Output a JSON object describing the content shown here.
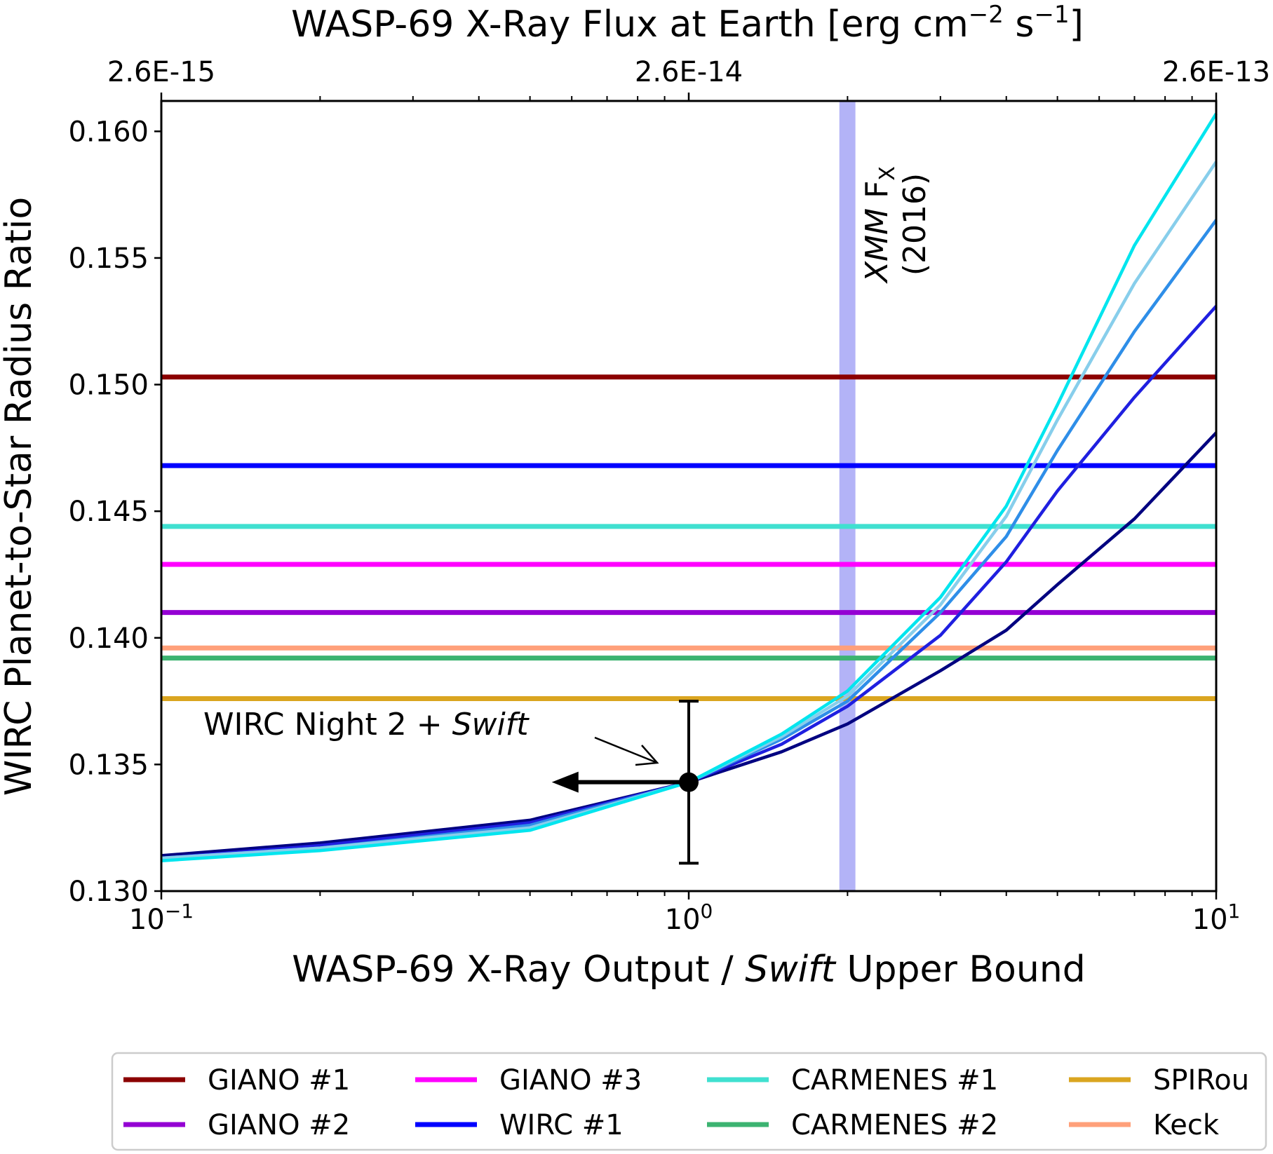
{
  "chart_data": {
    "type": "line",
    "top_title": "WASP-69 X-Ray Flux at Earth [erg cm",
    "top_title_sup1": "−2",
    "top_title_mid": " s",
    "top_title_sup2": "−1",
    "top_title_end": "]",
    "top_ticks": [
      {
        "label": "2.6E-15",
        "x": 0.1
      },
      {
        "label": "2.6E-14",
        "x": 1
      },
      {
        "label": "2.6E-13",
        "x": 10
      }
    ],
    "xlabel_pre": "WASP-69 X-Ray Output / ",
    "xlabel_em": "Swift",
    "xlabel_post": " Upper Bound",
    "ylabel": "WIRC Planet-to-Star Radius Ratio",
    "x_scale": "log",
    "xlim": [
      0.1,
      10
    ],
    "ylim": [
      0.13,
      0.1612
    ],
    "x_ticks": [
      {
        "base": "10",
        "exp": "−1",
        "value": 0.1
      },
      {
        "base": "10",
        "exp": "0",
        "value": 1
      },
      {
        "base": "10",
        "exp": "1",
        "value": 10
      }
    ],
    "y_ticks": [
      {
        "label": "0.130",
        "value": 0.13
      },
      {
        "label": "0.135",
        "value": 0.135
      },
      {
        "label": "0.140",
        "value": 0.14
      },
      {
        "label": "0.145",
        "value": 0.145
      },
      {
        "label": "0.150",
        "value": 0.15
      },
      {
        "label": "0.155",
        "value": 0.155
      },
      {
        "label": "0.160",
        "value": 0.16
      }
    ],
    "reference_lines": [
      {
        "name": "GIANO #1",
        "value": 0.1503,
        "color": "#8b0000"
      },
      {
        "name": "GIANO #2",
        "value": 0.141,
        "color": "#9400d3"
      },
      {
        "name": "GIANO #3",
        "value": 0.1429,
        "color": "#ff00ff"
      },
      {
        "name": "WIRC #1",
        "value": 0.1468,
        "color": "#0000ff"
      },
      {
        "name": "CARMENES #1",
        "value": 0.1444,
        "color": "#40e0d0"
      },
      {
        "name": "CARMENES #2",
        "value": 0.1392,
        "color": "#3cb371"
      },
      {
        "name": "SPIRou",
        "value": 0.1376,
        "color": "#daa520"
      },
      {
        "name": "Keck",
        "value": 0.1396,
        "color": "#ffa07a"
      }
    ],
    "model_series": [
      {
        "color": "#000080",
        "points": [
          [
            0.1,
            0.1314
          ],
          [
            0.2,
            0.1319
          ],
          [
            0.5,
            0.1328
          ],
          [
            1,
            0.1343
          ],
          [
            1.5,
            0.1355
          ],
          [
            2,
            0.1366
          ],
          [
            3,
            0.1387
          ],
          [
            4,
            0.1403
          ],
          [
            5,
            0.1421
          ],
          [
            7,
            0.1447
          ],
          [
            10,
            0.1481
          ]
        ]
      },
      {
        "color": "#1f1fe0",
        "points": [
          [
            0.1,
            0.1313
          ],
          [
            0.2,
            0.1318
          ],
          [
            0.5,
            0.1327
          ],
          [
            1,
            0.1343
          ],
          [
            1.5,
            0.1358
          ],
          [
            2,
            0.1373
          ],
          [
            3,
            0.1401
          ],
          [
            4,
            0.143
          ],
          [
            5,
            0.1458
          ],
          [
            7,
            0.1495
          ],
          [
            10,
            0.1531
          ]
        ]
      },
      {
        "color": "#2e8ee8",
        "points": [
          [
            0.1,
            0.1313
          ],
          [
            0.2,
            0.1317
          ],
          [
            0.5,
            0.1326
          ],
          [
            1,
            0.1343
          ],
          [
            1.5,
            0.136
          ],
          [
            2,
            0.1375
          ],
          [
            3,
            0.141
          ],
          [
            4,
            0.144
          ],
          [
            5,
            0.1474
          ],
          [
            7,
            0.1521
          ],
          [
            10,
            0.1565
          ]
        ]
      },
      {
        "color": "#87ceeb",
        "points": [
          [
            0.1,
            0.1313
          ],
          [
            0.2,
            0.1317
          ],
          [
            0.5,
            0.1325
          ],
          [
            1,
            0.1343
          ],
          [
            1.5,
            0.1361
          ],
          [
            2,
            0.1377
          ],
          [
            3,
            0.1413
          ],
          [
            4,
            0.1448
          ],
          [
            5,
            0.1486
          ],
          [
            7,
            0.154
          ],
          [
            10,
            0.1588
          ]
        ]
      },
      {
        "color": "#00e5ee",
        "points": [
          [
            0.1,
            0.1312
          ],
          [
            0.2,
            0.1316
          ],
          [
            0.5,
            0.1324
          ],
          [
            1,
            0.1343
          ],
          [
            1.5,
            0.1362
          ],
          [
            2,
            0.1379
          ],
          [
            3,
            0.1416
          ],
          [
            4,
            0.1452
          ],
          [
            5,
            0.1492
          ],
          [
            7,
            0.1555
          ],
          [
            10,
            0.1607
          ]
        ]
      }
    ],
    "xmm_band": {
      "x0": 1.93,
      "x1": 2.07,
      "color": "#b3b3f7",
      "label_em": "XMM",
      "label_rest": " F",
      "label_sub": "X",
      "label_year": "(2016)"
    },
    "data_point": {
      "x": 1,
      "y": 0.1343,
      "yerr_low": 0.1311,
      "yerr_high": 0.1375,
      "arrow_to_x": 0.55
    },
    "point_annotation": {
      "text": "WIRC Night 2 + ",
      "text_em": "Swift"
    },
    "legend": [
      {
        "name": "GIANO #1",
        "color": "#8b0000"
      },
      {
        "name": "GIANO #2",
        "color": "#9400d3"
      },
      {
        "name": "GIANO #3",
        "color": "#ff00ff"
      },
      {
        "name": "WIRC #1",
        "color": "#0000ff"
      },
      {
        "name": "CARMENES #1",
        "color": "#40e0d0"
      },
      {
        "name": "CARMENES #2",
        "color": "#3cb371"
      },
      {
        "name": "SPIRou",
        "color": "#daa520"
      },
      {
        "name": "Keck",
        "color": "#ffa07a"
      }
    ],
    "legend_position": "bottom"
  }
}
